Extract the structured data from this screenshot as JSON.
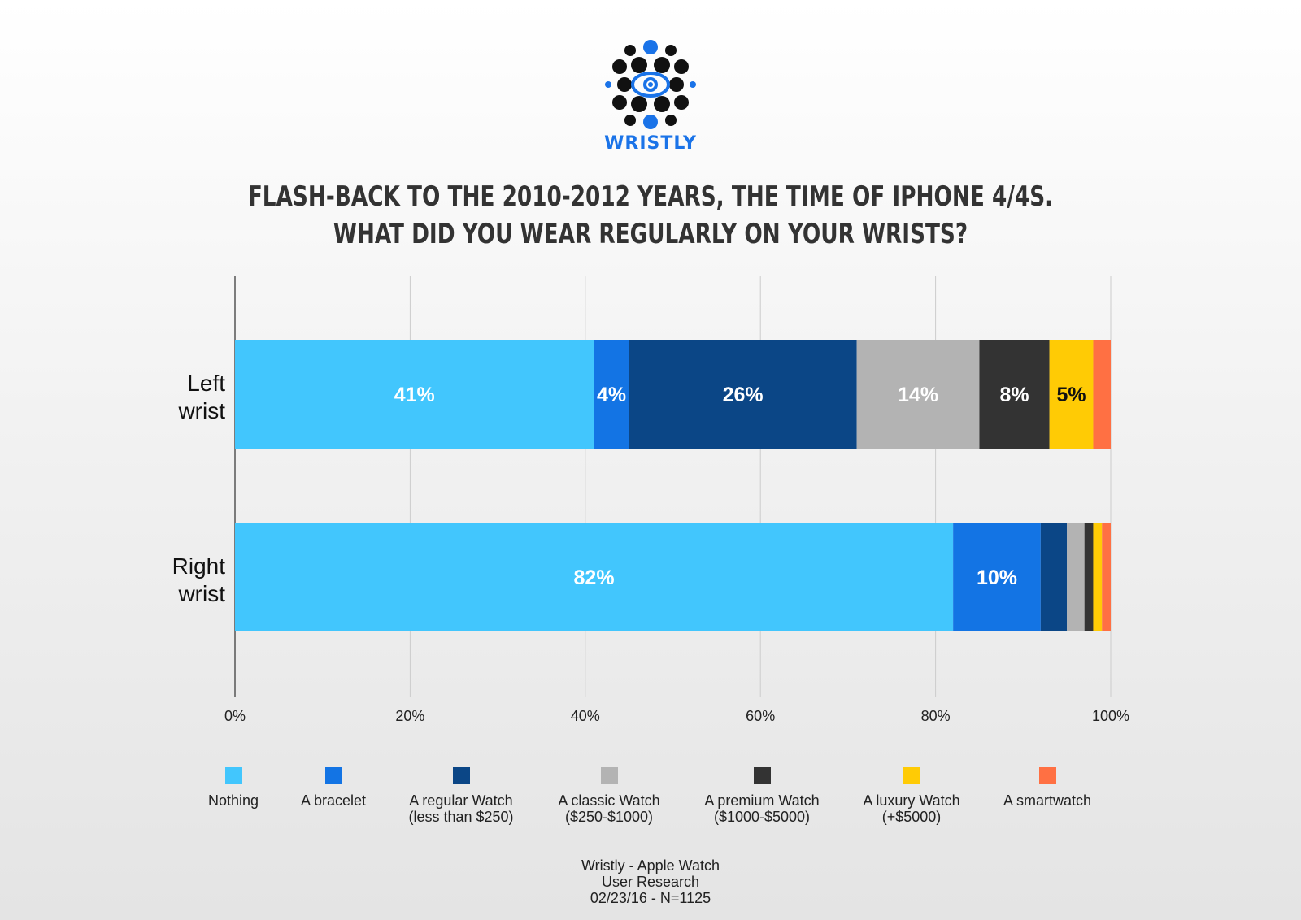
{
  "brand": {
    "name": "WRISTLY",
    "logo": "eye-dots-logo-icon"
  },
  "title_lines": [
    "FLASH-BACK TO THE 2010-2012 YEARS, THE TIME OF IPHONE 4/4S.",
    "WHAT DID YOU WEAR REGULARLY ON YOUR WRISTS?"
  ],
  "chart_data": {
    "type": "bar",
    "orientation": "horizontal",
    "stacked": true,
    "categories": [
      [
        "Left",
        "wrist"
      ],
      [
        "Right",
        "wrist"
      ]
    ],
    "x_ticks": [
      "0%",
      "20%",
      "40%",
      "60%",
      "80%",
      "100%"
    ],
    "xlim": [
      0,
      100
    ],
    "grid": true,
    "legend_position": "bottom",
    "series": [
      {
        "name": "Nothing",
        "values": [
          41,
          82
        ],
        "color": "#42c6fd",
        "labels": [
          "41%",
          "82%"
        ],
        "label_color": "#ffffff"
      },
      {
        "name": "A bracelet",
        "values": [
          4,
          10
        ],
        "color": "#1374e4",
        "labels": [
          "4%",
          "10%"
        ],
        "label_color": "#ffffff"
      },
      {
        "name": "A regular Watch (less than $250)",
        "values": [
          26,
          3
        ],
        "color": "#0b4686",
        "labels": [
          "26%",
          ""
        ],
        "label_color": "#ffffff"
      },
      {
        "name": "A classic Watch ($250-$1000)",
        "values": [
          14,
          2
        ],
        "color": "#b3b3b3",
        "labels": [
          "14%",
          ""
        ],
        "label_color": "#ffffff"
      },
      {
        "name": "A premium Watch ($1000-$5000)",
        "values": [
          8,
          1
        ],
        "color": "#333333",
        "labels": [
          "8%",
          ""
        ],
        "label_color": "#ffffff"
      },
      {
        "name": "A luxury Watch (+$5000)",
        "values": [
          5,
          1
        ],
        "color": "#ffcb05",
        "labels": [
          "5%",
          ""
        ],
        "label_color": "#111111"
      },
      {
        "name": "A smartwatch",
        "values": [
          2,
          1
        ],
        "color": "#ff7043",
        "labels": [
          "",
          ""
        ],
        "label_color": "#ffffff"
      }
    ]
  },
  "legend": [
    {
      "line1": "Nothing",
      "line2": "",
      "color": "#42c6fd"
    },
    {
      "line1": "A bracelet",
      "line2": "",
      "color": "#1374e4"
    },
    {
      "line1": "A regular Watch",
      "line2": "(less than $250)",
      "color": "#0b4686"
    },
    {
      "line1": "A classic Watch",
      "line2": "($250-$1000)",
      "color": "#b3b3b3"
    },
    {
      "line1": "A premium Watch",
      "line2": "($1000-$5000)",
      "color": "#333333"
    },
    {
      "line1": "A luxury Watch",
      "line2": "(+$5000)",
      "color": "#ffcb05"
    },
    {
      "line1": "A smartwatch",
      "line2": "",
      "color": "#ff7043"
    }
  ],
  "footer": {
    "line1": "Wristly - Apple Watch",
    "line2": "User Research",
    "line3": "02/23/16 - N=1125"
  }
}
